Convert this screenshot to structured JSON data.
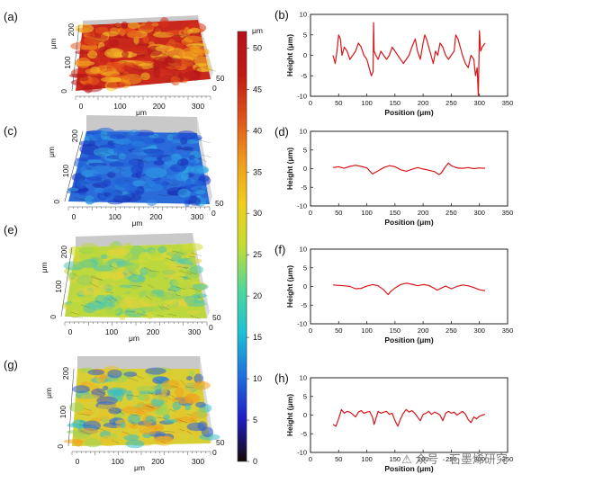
{
  "watermark": "⚠ 众号 · 石墨烯研究",
  "colorbar": {
    "unit": "μm",
    "ticks": [
      0,
      5,
      10,
      15,
      20,
      25,
      30,
      35,
      40,
      45,
      50
    ],
    "range": [
      0,
      52
    ],
    "colors": [
      "#150a05",
      "#1d1ec8",
      "#1f6fe0",
      "#19c2d6",
      "#4fd89a",
      "#c4dc33",
      "#f1cf1c",
      "#f09a1a",
      "#e0511a",
      "#c01a12",
      "#b5101a"
    ]
  },
  "maps": [
    {
      "panel": "(a)",
      "x_axis_label": "μm",
      "x_ticks": [
        "0",
        "100",
        "200",
        "300"
      ],
      "y_axis_label": "μm",
      "y_ticks": [
        "0",
        "100",
        "200"
      ],
      "z_ticks": [
        "50",
        "0"
      ],
      "palette": [
        "#b5161a",
        "#d4301b",
        "#e8571a",
        "#f39a1c",
        "#f6c82a"
      ],
      "base_color": "#c8281b"
    },
    {
      "panel": "(c)",
      "x_axis_label": "μm",
      "x_ticks": [
        "0",
        "100",
        "200",
        "300"
      ],
      "y_axis_label": "μm",
      "y_ticks": [
        "0",
        "100",
        "200"
      ],
      "z_ticks": [
        "50",
        "0"
      ],
      "palette": [
        "#1b3fc8",
        "#1f62d8",
        "#2c86e4",
        "#31a8e6",
        "#1a2fb5"
      ],
      "base_color": "#2a6ad9"
    },
    {
      "panel": "(e)",
      "x_axis_label": "μm",
      "x_ticks": [
        "0",
        "100",
        "200",
        "300"
      ],
      "y_axis_label": "μm",
      "y_ticks": [
        "0",
        "100",
        "200"
      ],
      "z_ticks": [
        "50",
        "0"
      ],
      "palette": [
        "#b9d93a",
        "#d6dc34",
        "#8ccf62",
        "#4fc6b0",
        "#e2d23c"
      ],
      "base_color": "#bcd83e"
    },
    {
      "panel": "(g)",
      "x_axis_label": "μm",
      "x_ticks": [
        "0",
        "100",
        "200",
        "300"
      ],
      "y_axis_label": "μm",
      "y_ticks": [
        "0",
        "100",
        "200"
      ],
      "z_ticks": [
        "50",
        "0"
      ],
      "palette": [
        "#e8c22a",
        "#f0a21f",
        "#9bd35a",
        "#34c0c8",
        "#2f5fd8"
      ],
      "base_color": "#d9cf35"
    }
  ],
  "chart_data": [
    {
      "panel": "(b)",
      "type": "line",
      "xlabel": "Position (μm)",
      "ylabel": "Height (μm)",
      "xlim": [
        0,
        350
      ],
      "ylim": [
        -10,
        10
      ],
      "xticks": [
        0,
        50,
        100,
        150,
        200,
        250,
        300,
        350
      ],
      "yticks": [
        -10,
        -5,
        0,
        5,
        10
      ],
      "line_color": "#d7161b",
      "x": [
        40,
        44,
        47,
        50,
        53,
        56,
        60,
        65,
        70,
        75,
        80,
        85,
        90,
        95,
        100,
        104,
        108,
        111,
        112,
        113,
        116,
        120,
        125,
        130,
        135,
        140,
        145,
        150,
        155,
        160,
        165,
        170,
        175,
        180,
        183,
        186,
        190,
        195,
        200,
        203,
        206,
        210,
        214,
        218,
        222,
        226,
        230,
        235,
        240,
        245,
        250,
        255,
        258,
        262,
        266,
        270,
        275,
        280,
        285,
        290,
        293,
        296,
        298,
        300,
        302,
        305,
        310
      ],
      "y": [
        0,
        -2,
        1,
        5,
        4,
        0,
        2,
        1,
        -1,
        0,
        1,
        3,
        2,
        0,
        -1,
        -3,
        -5,
        -4,
        8,
        1,
        0,
        -1,
        1,
        0,
        -1,
        0,
        2,
        1,
        0,
        -1,
        -2,
        -1,
        0,
        2,
        3,
        4,
        1,
        -1,
        3,
        5,
        4,
        2,
        0,
        -2,
        1,
        0,
        3,
        2,
        0,
        -1,
        0,
        1,
        5,
        4,
        2,
        0,
        -2,
        -3,
        0,
        -1,
        -5,
        -3,
        -10,
        6,
        1,
        2,
        3
      ]
    },
    {
      "panel": "(d)",
      "type": "line",
      "xlabel": "Position (μm)",
      "ylabel": "Height (μm)",
      "xlim": [
        0,
        350
      ],
      "ylim": [
        -10,
        10
      ],
      "xticks": [
        0,
        50,
        100,
        150,
        200,
        250,
        300,
        350
      ],
      "yticks": [
        -10,
        -5,
        0,
        5,
        10
      ],
      "line_color": "#d7161b",
      "x": [
        40,
        50,
        60,
        70,
        80,
        90,
        100,
        105,
        110,
        120,
        130,
        140,
        150,
        160,
        170,
        180,
        190,
        200,
        210,
        220,
        228,
        232,
        240,
        245,
        250,
        260,
        270,
        280,
        290,
        300,
        310
      ],
      "y": [
        0.3,
        0.5,
        0.1,
        0.6,
        0.9,
        0.6,
        0.2,
        -0.6,
        -1.4,
        -0.6,
        0.3,
        0.8,
        0.5,
        -0.3,
        -0.7,
        -0.2,
        0.3,
        -0.1,
        -0.4,
        -0.8,
        -1.6,
        -1.2,
        0.6,
        1.5,
        0.8,
        0.2,
        0.1,
        0.3,
        0.0,
        0.2,
        0.1
      ]
    },
    {
      "panel": "(f)",
      "type": "line",
      "xlabel": "Position (μm)",
      "ylabel": "Height (μm)",
      "xlim": [
        0,
        350
      ],
      "ylim": [
        -10,
        10
      ],
      "xticks": [
        0,
        50,
        100,
        150,
        200,
        250,
        300,
        350
      ],
      "yticks": [
        -10,
        -5,
        0,
        5,
        10
      ],
      "line_color": "#d7161b",
      "x": [
        40,
        50,
        60,
        70,
        80,
        90,
        100,
        110,
        120,
        130,
        138,
        142,
        150,
        160,
        170,
        180,
        190,
        200,
        210,
        220,
        225,
        230,
        240,
        250,
        260,
        270,
        280,
        290,
        300,
        310
      ],
      "y": [
        0.4,
        0.3,
        0.2,
        0.0,
        -0.6,
        -0.5,
        0.1,
        0.5,
        0.2,
        -0.9,
        -2.2,
        -1.4,
        -0.4,
        0.5,
        0.9,
        0.6,
        0.2,
        0.5,
        0.3,
        -0.5,
        -1.0,
        -0.6,
        0.1,
        -0.6,
        0.0,
        0.4,
        0.2,
        -0.3,
        -0.9,
        -1.1
      ]
    },
    {
      "panel": "(h)",
      "type": "line",
      "xlabel": "Position (μm)",
      "ylabel": "Height (μm)",
      "xlim": [
        0,
        350
      ],
      "ylim": [
        -10,
        10
      ],
      "xticks": [
        0,
        50,
        100,
        150,
        200,
        250,
        300,
        350
      ],
      "yticks": [
        -10,
        -5,
        0,
        5,
        10
      ],
      "line_color": "#d7161b",
      "x": [
        40,
        45,
        50,
        55,
        60,
        65,
        70,
        75,
        80,
        85,
        90,
        95,
        100,
        105,
        110,
        113,
        116,
        120,
        125,
        130,
        135,
        140,
        145,
        150,
        155,
        160,
        165,
        170,
        175,
        180,
        185,
        190,
        195,
        200,
        205,
        210,
        215,
        220,
        225,
        230,
        235,
        240,
        245,
        250,
        255,
        260,
        265,
        270,
        275,
        280,
        285,
        290,
        295,
        300,
        305,
        310
      ],
      "y": [
        -2.5,
        -3,
        -1,
        1.5,
        0.5,
        1,
        0.8,
        0.2,
        -0.5,
        0.8,
        1.2,
        0.5,
        0.8,
        1.0,
        -0.5,
        -2.5,
        -1.0,
        1.0,
        0.5,
        0.8,
        1.0,
        0.2,
        0.5,
        -1.5,
        -3.0,
        -1.0,
        0.5,
        1.5,
        0.8,
        1.2,
        0.5,
        -0.5,
        -1.5,
        0.2,
        0.5,
        1.0,
        0.2,
        0.8,
        0.5,
        0.0,
        -1.5,
        0.5,
        1.0,
        0.5,
        0.8,
        0.0,
        0.5,
        1.0,
        0.3,
        -1.2,
        -2.0,
        -0.5,
        -1.0,
        -0.3,
        0.0,
        0.2
      ]
    }
  ]
}
